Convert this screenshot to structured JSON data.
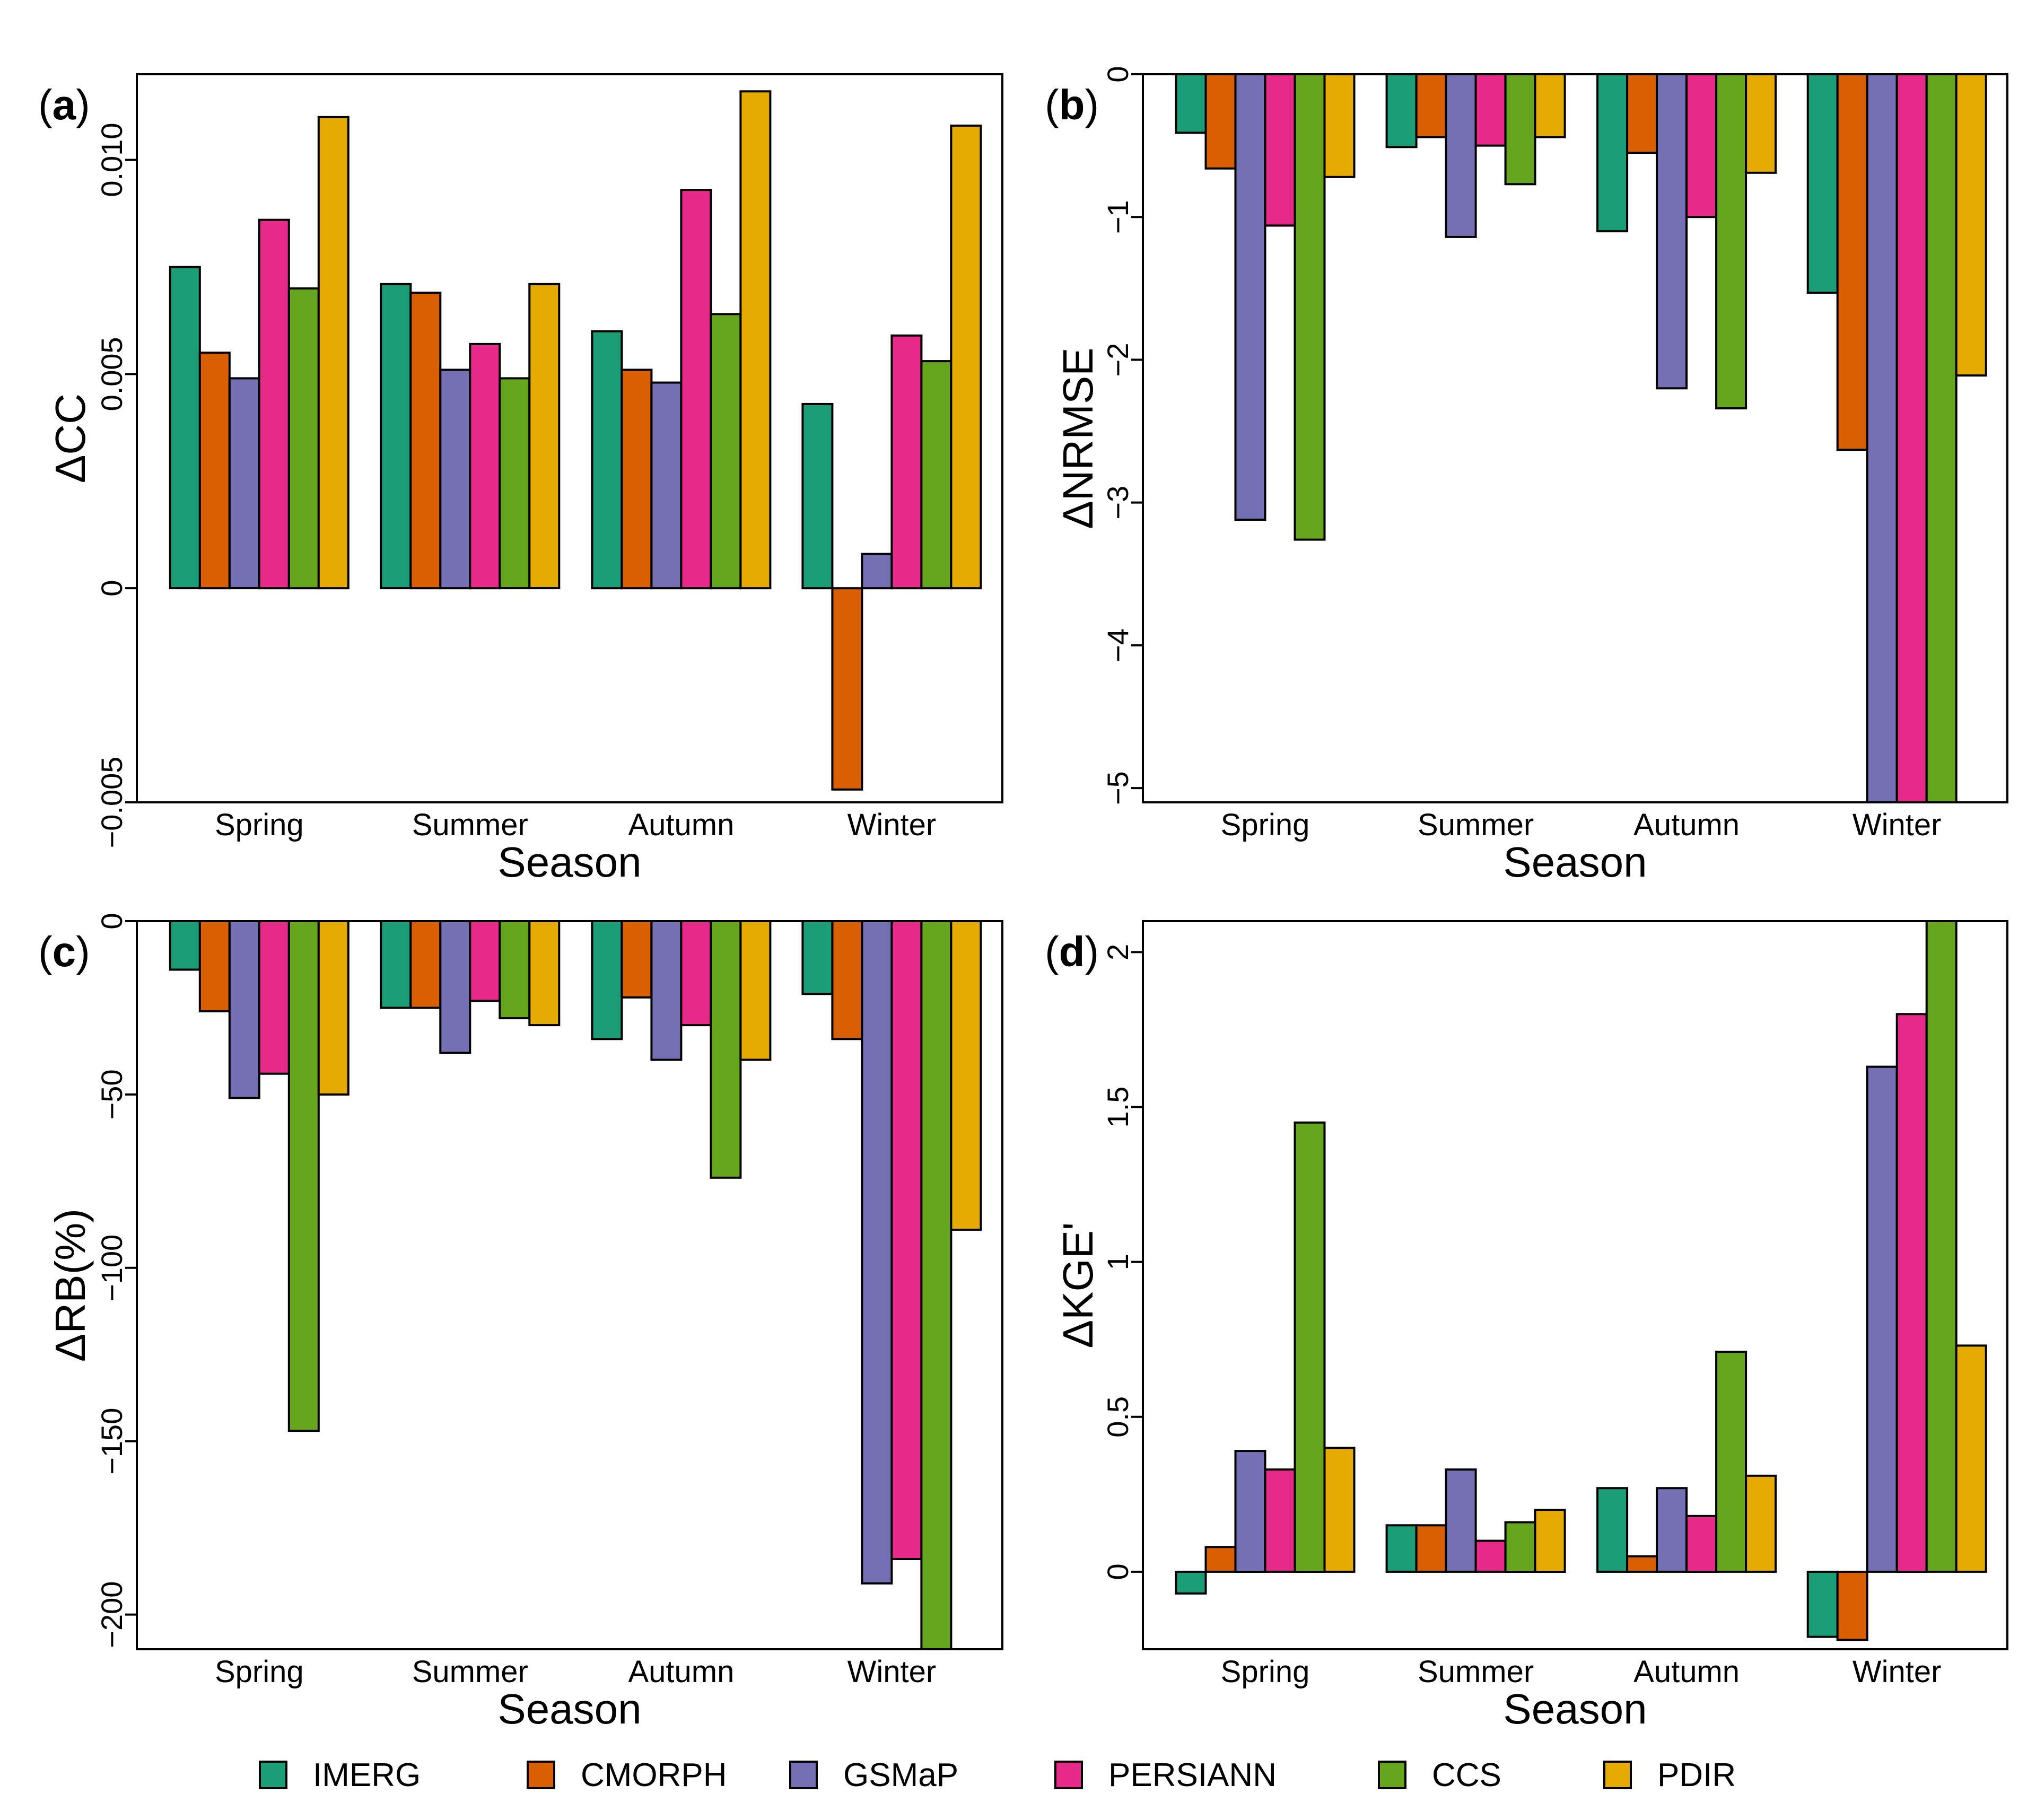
{
  "colors": {
    "IMERG": "#1b9e77",
    "CMORPH": "#d95f02",
    "GSMaP": "#7570b3",
    "PERSIANN": "#e7298a",
    "CCS": "#66a61e",
    "PDIR": "#e6ab02"
  },
  "legend": [
    "IMERG",
    "CMORPH",
    "GSMaP",
    "PERSIANN",
    "CCS",
    "PDIR"
  ],
  "chart_data": [
    {
      "id": "a",
      "type": "bar",
      "panel_label": "a",
      "ylabel": "ΔCC",
      "xlabel": "Season",
      "categories": [
        "Spring",
        "Summer",
        "Autumn",
        "Winter"
      ],
      "ylim": [
        -0.005,
        0.012
      ],
      "yticks": [
        -0.005,
        0,
        0.005,
        0.01
      ],
      "ytick_labels": [
        "−0.005",
        "0",
        "0.005",
        "0.010"
      ],
      "series": [
        {
          "name": "IMERG",
          "values": [
            0.0075,
            0.0071,
            0.006,
            0.0043
          ]
        },
        {
          "name": "CMORPH",
          "values": [
            0.0055,
            0.0069,
            0.0051,
            -0.0047
          ]
        },
        {
          "name": "GSMaP",
          "values": [
            0.0049,
            0.0051,
            0.0048,
            0.0008
          ]
        },
        {
          "name": "PERSIANN",
          "values": [
            0.0086,
            0.0057,
            0.0093,
            0.0059
          ]
        },
        {
          "name": "CCS",
          "values": [
            0.007,
            0.0049,
            0.0064,
            0.0053
          ]
        },
        {
          "name": "PDIR",
          "values": [
            0.011,
            0.0071,
            0.0116,
            0.0108
          ]
        }
      ]
    },
    {
      "id": "b",
      "type": "bar",
      "panel_label": "b",
      "ylabel": "ΔNRMSE",
      "xlabel": "Season",
      "categories": [
        "Spring",
        "Summer",
        "Autumn",
        "Winter"
      ],
      "ylim": [
        -5.1,
        0
      ],
      "yticks": [
        -5,
        -4,
        -3,
        -2,
        -1,
        0
      ],
      "ytick_labels": [
        "−5",
        "−4",
        "−3",
        "−2",
        "−1",
        "0"
      ],
      "series": [
        {
          "name": "IMERG",
          "values": [
            -0.41,
            -0.51,
            -1.1,
            -1.53
          ]
        },
        {
          "name": "CMORPH",
          "values": [
            -0.66,
            -0.44,
            -0.55,
            -2.63
          ]
        },
        {
          "name": "GSMaP",
          "values": [
            -3.12,
            -1.14,
            -2.2,
            -5.1
          ]
        },
        {
          "name": "PERSIANN",
          "values": [
            -1.06,
            -0.5,
            -1.0,
            -5.1
          ]
        },
        {
          "name": "CCS",
          "values": [
            -3.26,
            -0.77,
            -2.34,
            -5.1
          ]
        },
        {
          "name": "PDIR",
          "values": [
            -0.72,
            -0.44,
            -0.69,
            -2.11
          ]
        }
      ]
    },
    {
      "id": "c",
      "type": "bar",
      "panel_label": "c",
      "ylabel": "ΔRB(%)",
      "xlabel": "Season",
      "categories": [
        "Spring",
        "Summer",
        "Autumn",
        "Winter"
      ],
      "ylim": [
        -210,
        0
      ],
      "yticks": [
        -200,
        -150,
        -100,
        -50,
        0
      ],
      "ytick_labels": [
        "−200",
        "−150",
        "−100",
        "−50",
        "0"
      ],
      "series": [
        {
          "name": "IMERG",
          "values": [
            -14,
            -25,
            -34,
            -21
          ]
        },
        {
          "name": "CMORPH",
          "values": [
            -26,
            -25,
            -22,
            -34
          ]
        },
        {
          "name": "GSMaP",
          "values": [
            -51,
            -38,
            -40,
            -191
          ]
        },
        {
          "name": "PERSIANN",
          "values": [
            -44,
            -23,
            -30,
            -184
          ]
        },
        {
          "name": "CCS",
          "values": [
            -147,
            -28,
            -74,
            -210
          ]
        },
        {
          "name": "PDIR",
          "values": [
            -50,
            -30,
            -40,
            -89
          ]
        }
      ]
    },
    {
      "id": "d",
      "type": "bar",
      "panel_label": "d",
      "ylabel": "ΔKGE'",
      "xlabel": "Season",
      "categories": [
        "Spring",
        "Summer",
        "Autumn",
        "Winter"
      ],
      "ylim": [
        -0.25,
        2.1
      ],
      "yticks": [
        0,
        0.5,
        1,
        1.5,
        2
      ],
      "ytick_labels": [
        "0",
        "0.5",
        "1",
        "1.5",
        "2"
      ],
      "series": [
        {
          "name": "IMERG",
          "values": [
            -0.07,
            0.15,
            0.27,
            -0.21
          ]
        },
        {
          "name": "CMORPH",
          "values": [
            0.08,
            0.15,
            0.05,
            -0.22
          ]
        },
        {
          "name": "GSMaP",
          "values": [
            0.39,
            0.33,
            0.27,
            1.63
          ]
        },
        {
          "name": "PERSIANN",
          "values": [
            0.33,
            0.1,
            0.18,
            1.8
          ]
        },
        {
          "name": "CCS",
          "values": [
            1.45,
            0.16,
            0.71,
            2.1
          ]
        },
        {
          "name": "PDIR",
          "values": [
            0.4,
            0.2,
            0.31,
            0.73
          ]
        }
      ]
    }
  ]
}
